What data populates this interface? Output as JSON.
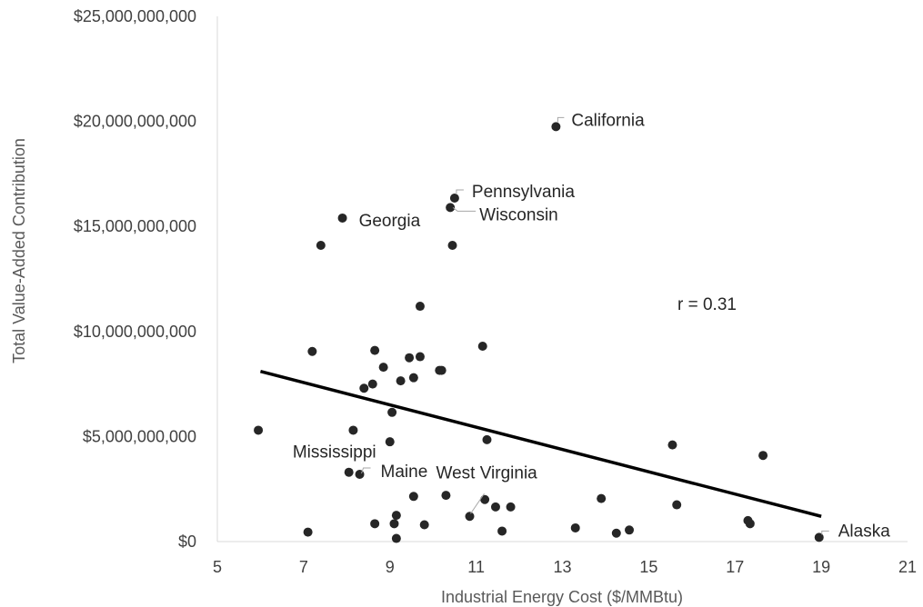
{
  "chart_data": {
    "type": "scatter",
    "title": "",
    "xlabel": "Industrial Energy Cost ($/MMBtu)",
    "ylabel": "Total Value-Added Contribution",
    "xlim": [
      5,
      21
    ],
    "ylim": [
      0,
      25000000000
    ],
    "x_ticks": [
      5,
      7,
      9,
      11,
      13,
      15,
      17,
      19,
      21
    ],
    "x_tick_labels": [
      "5",
      "7",
      "9",
      "11",
      "13",
      "15",
      "17",
      "19",
      "21"
    ],
    "y_ticks": [
      0,
      5000000000,
      10000000000,
      15000000000,
      20000000000,
      25000000000
    ],
    "y_tick_labels": [
      "$0",
      "$5,000,000,000",
      "$10,000,000,000",
      "$15,000,000,000",
      "$20,000,000,000",
      "$25,000,000,000"
    ],
    "grid": false,
    "legend": "none",
    "marker_color": "#262626",
    "trendline": {
      "x": [
        6.0,
        19.0
      ],
      "y": [
        8100000000,
        1200000000
      ],
      "color": "#000000"
    },
    "annotation": "r = 0.31",
    "points": [
      {
        "x": 12.85,
        "y": 19750000000,
        "label": "California"
      },
      {
        "x": 10.5,
        "y": 16350000000,
        "label": "Pennsylvania"
      },
      {
        "x": 10.4,
        "y": 15900000000,
        "label": "Wisconsin"
      },
      {
        "x": 7.9,
        "y": 15400000000,
        "label": "Georgia"
      },
      {
        "x": 7.4,
        "y": 14100000000
      },
      {
        "x": 10.45,
        "y": 14100000000
      },
      {
        "x": 9.7,
        "y": 11200000000
      },
      {
        "x": 11.15,
        "y": 9300000000
      },
      {
        "x": 7.2,
        "y": 9050000000
      },
      {
        "x": 8.65,
        "y": 9100000000
      },
      {
        "x": 9.45,
        "y": 8750000000
      },
      {
        "x": 9.7,
        "y": 8800000000
      },
      {
        "x": 8.85,
        "y": 8300000000
      },
      {
        "x": 10.15,
        "y": 8150000000
      },
      {
        "x": 10.2,
        "y": 8150000000
      },
      {
        "x": 9.55,
        "y": 7800000000
      },
      {
        "x": 9.25,
        "y": 7650000000
      },
      {
        "x": 8.6,
        "y": 7500000000
      },
      {
        "x": 8.4,
        "y": 7300000000
      },
      {
        "x": 9.05,
        "y": 6150000000
      },
      {
        "x": 5.95,
        "y": 5300000000
      },
      {
        "x": 8.15,
        "y": 5300000000
      },
      {
        "x": 9.0,
        "y": 4750000000
      },
      {
        "x": 11.25,
        "y": 4850000000
      },
      {
        "x": 15.55,
        "y": 4600000000
      },
      {
        "x": 17.65,
        "y": 4100000000
      },
      {
        "x": 8.05,
        "y": 3300000000,
        "label": "Mississippi"
      },
      {
        "x": 8.3,
        "y": 3200000000,
        "label": "Maine"
      },
      {
        "x": 10.85,
        "y": 1200000000,
        "label": "West Virginia"
      },
      {
        "x": 9.55,
        "y": 2150000000
      },
      {
        "x": 10.3,
        "y": 2200000000
      },
      {
        "x": 11.2,
        "y": 2000000000
      },
      {
        "x": 13.9,
        "y": 2050000000
      },
      {
        "x": 9.15,
        "y": 1250000000
      },
      {
        "x": 11.45,
        "y": 1650000000
      },
      {
        "x": 11.8,
        "y": 1650000000
      },
      {
        "x": 15.65,
        "y": 1750000000
      },
      {
        "x": 17.3,
        "y": 1000000000
      },
      {
        "x": 17.35,
        "y": 850000000
      },
      {
        "x": 7.1,
        "y": 450000000
      },
      {
        "x": 8.65,
        "y": 850000000
      },
      {
        "x": 9.1,
        "y": 850000000
      },
      {
        "x": 9.8,
        "y": 800000000
      },
      {
        "x": 11.6,
        "y": 500000000
      },
      {
        "x": 13.3,
        "y": 650000000
      },
      {
        "x": 14.25,
        "y": 400000000
      },
      {
        "x": 14.55,
        "y": 550000000
      },
      {
        "x": 9.15,
        "y": 150000000
      },
      {
        "x": 18.95,
        "y": 200000000,
        "label": "Alaska"
      }
    ]
  }
}
